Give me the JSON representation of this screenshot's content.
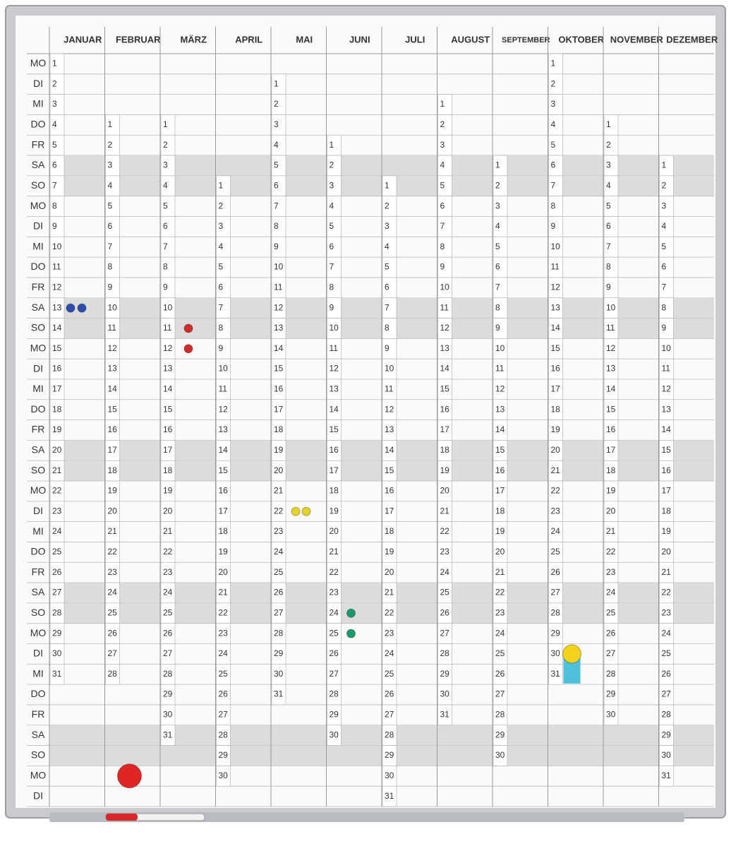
{
  "planner": {
    "months": [
      {
        "name": "JANUAR",
        "days": [
          1,
          2,
          3,
          4,
          5,
          6,
          7,
          8,
          9,
          10,
          11,
          12,
          13,
          14,
          15,
          16,
          17,
          18,
          19,
          20,
          21,
          22,
          23,
          24,
          25,
          26,
          27,
          28,
          29,
          30,
          31,
          null,
          null,
          null,
          null,
          null,
          null
        ]
      },
      {
        "name": "FEBRUAR",
        "days": [
          null,
          null,
          null,
          1,
          2,
          3,
          4,
          5,
          6,
          7,
          8,
          9,
          10,
          11,
          12,
          13,
          14,
          15,
          16,
          17,
          18,
          19,
          20,
          21,
          22,
          23,
          24,
          25,
          26,
          27,
          28,
          null,
          null,
          null,
          null,
          null,
          null
        ]
      },
      {
        "name": "MÄRZ",
        "days": [
          null,
          null,
          null,
          1,
          2,
          3,
          4,
          5,
          6,
          7,
          8,
          9,
          10,
          11,
          12,
          13,
          14,
          15,
          16,
          17,
          18,
          19,
          20,
          21,
          22,
          23,
          24,
          25,
          26,
          27,
          28,
          29,
          30,
          31,
          null,
          null,
          null
        ]
      },
      {
        "name": "APRIL",
        "days": [
          null,
          null,
          null,
          null,
          null,
          null,
          1,
          2,
          3,
          4,
          5,
          6,
          7,
          8,
          9,
          10,
          11,
          12,
          13,
          14,
          15,
          16,
          17,
          18,
          19,
          20,
          21,
          22,
          23,
          24,
          25,
          26,
          27,
          28,
          29,
          30,
          null
        ]
      },
      {
        "name": "MAI",
        "days": [
          null,
          1,
          2,
          3,
          4,
          5,
          6,
          7,
          8,
          9,
          10,
          11,
          12,
          13,
          14,
          15,
          16,
          17,
          18,
          19,
          20,
          21,
          22,
          23,
          24,
          25,
          26,
          27,
          28,
          29,
          30,
          31,
          null,
          null,
          null,
          null,
          null
        ]
      },
      {
        "name": "JUNI",
        "days": [
          null,
          null,
          null,
          null,
          1,
          2,
          3,
          4,
          5,
          6,
          7,
          8,
          9,
          10,
          11,
          12,
          13,
          14,
          15,
          16,
          17,
          18,
          19,
          20,
          21,
          22,
          23,
          24,
          25,
          26,
          27,
          28,
          29,
          30,
          null,
          null,
          null
        ]
      },
      {
        "name": "JULI",
        "days": [
          null,
          null,
          null,
          null,
          null,
          null,
          1,
          2,
          3,
          4,
          5,
          6,
          7,
          8,
          9,
          10,
          11,
          12,
          13,
          14,
          15,
          16,
          17,
          18,
          19,
          20,
          21,
          22,
          23,
          24,
          25,
          26,
          27,
          28,
          29,
          30,
          31
        ]
      },
      {
        "name": "AUGUST",
        "days": [
          null,
          null,
          1,
          2,
          3,
          4,
          5,
          6,
          7,
          8,
          9,
          10,
          11,
          12,
          13,
          14,
          15,
          16,
          17,
          18,
          19,
          20,
          21,
          22,
          23,
          24,
          25,
          26,
          27,
          28,
          29,
          30,
          31,
          null,
          null,
          null,
          null
        ]
      },
      {
        "name": "SEPTEMBER",
        "days": [
          null,
          null,
          null,
          null,
          null,
          1,
          2,
          3,
          4,
          5,
          6,
          7,
          8,
          9,
          10,
          11,
          12,
          13,
          14,
          15,
          16,
          17,
          18,
          19,
          20,
          21,
          22,
          23,
          24,
          25,
          26,
          27,
          28,
          29,
          30,
          null,
          null
        ]
      },
      {
        "name": "OKTOBER",
        "days": [
          1,
          2,
          3,
          4,
          5,
          6,
          7,
          8,
          9,
          10,
          11,
          12,
          13,
          14,
          15,
          16,
          17,
          18,
          19,
          20,
          21,
          22,
          23,
          24,
          25,
          26,
          27,
          28,
          29,
          30,
          31,
          null,
          null,
          null,
          null,
          null,
          null
        ]
      },
      {
        "name": "NOVEMBER",
        "days": [
          null,
          null,
          null,
          1,
          2,
          3,
          4,
          5,
          6,
          7,
          8,
          9,
          10,
          11,
          12,
          13,
          14,
          15,
          16,
          17,
          18,
          19,
          20,
          21,
          22,
          23,
          24,
          25,
          26,
          27,
          28,
          29,
          30,
          null,
          null,
          null,
          null
        ]
      },
      {
        "name": "DEZEMBER",
        "days": [
          null,
          null,
          null,
          null,
          null,
          1,
          2,
          3,
          4,
          5,
          6,
          7,
          8,
          9,
          10,
          11,
          12,
          13,
          14,
          15,
          16,
          17,
          18,
          19,
          20,
          21,
          22,
          23,
          24,
          25,
          26,
          27,
          28,
          29,
          30,
          31,
          null
        ]
      }
    ],
    "weekdays": [
      "MO",
      "DI",
      "MI",
      "DO",
      "FR",
      "SA",
      "SO",
      "MO",
      "DI",
      "MI",
      "DO",
      "FR",
      "SA",
      "SO",
      "MO",
      "DI",
      "MI",
      "DO",
      "FR",
      "SA",
      "SO",
      "MO",
      "DI",
      "MI",
      "DO",
      "FR",
      "SA",
      "SO",
      "MO",
      "DI",
      "MI",
      "DO",
      "FR",
      "SA",
      "SO",
      "MO",
      "DI"
    ]
  }
}
